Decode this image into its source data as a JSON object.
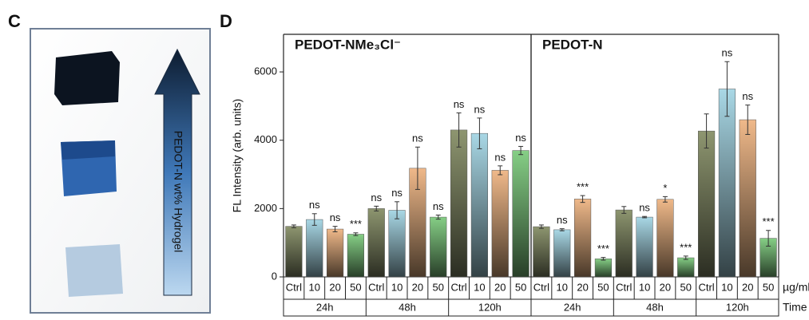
{
  "panel_c": {
    "label": "C",
    "arrow_text": "PEDOT-N wt% Hydrogel"
  },
  "panel_d": {
    "label": "D",
    "row_labels": [
      "µg/ml",
      "Time"
    ]
  },
  "chart_data": [
    {
      "type": "bar",
      "title": "PEDOT-NMe₃Cl⁻",
      "ylabel": "FL Intensity (arb. units)",
      "categories": [
        "Ctrl",
        "10",
        "20",
        "50",
        "Ctrl",
        "10",
        "20",
        "50",
        "Ctrl",
        "10",
        "20",
        "50"
      ],
      "groups": [
        "24h",
        "48h",
        "120h"
      ],
      "colors": [
        "#8e9670",
        "#a9d8e6",
        "#f0b98a",
        "#86cf86"
      ],
      "values": [
        1480,
        1680,
        1400,
        1250,
        2000,
        1950,
        3180,
        1750,
        4300,
        4200,
        3120,
        3700
      ],
      "errors": [
        40,
        170,
        80,
        40,
        70,
        250,
        620,
        60,
        500,
        450,
        130,
        120
      ],
      "annotations": [
        null,
        "ns",
        "ns",
        "***",
        "ns",
        "ns",
        "ns",
        "ns",
        "ns",
        "ns",
        "ns",
        "ns"
      ],
      "ylim": [
        0,
        7100
      ],
      "yticks": [
        0,
        2000,
        4000,
        6000
      ]
    },
    {
      "type": "bar",
      "title": "PEDOT-N",
      "categories": [
        "Ctrl",
        "10",
        "20",
        "50",
        "Ctrl",
        "10",
        "20",
        "50",
        "Ctrl",
        "10",
        "20",
        "50"
      ],
      "groups": [
        "24h",
        "48h",
        "120h"
      ],
      "colors": [
        "#8e9670",
        "#a9d8e6",
        "#f0b98a",
        "#86cf86"
      ],
      "values": [
        1470,
        1380,
        2280,
        530,
        1960,
        1750,
        2270,
        560,
        4270,
        5500,
        4600,
        1130
      ],
      "errors": [
        50,
        30,
        100,
        40,
        100,
        20,
        80,
        50,
        500,
        800,
        430,
        230
      ],
      "annotations": [
        null,
        "ns",
        "***",
        "***",
        null,
        "ns",
        "*",
        "***",
        null,
        "ns",
        "ns",
        "***"
      ],
      "ylim": [
        0,
        7100
      ]
    }
  ]
}
